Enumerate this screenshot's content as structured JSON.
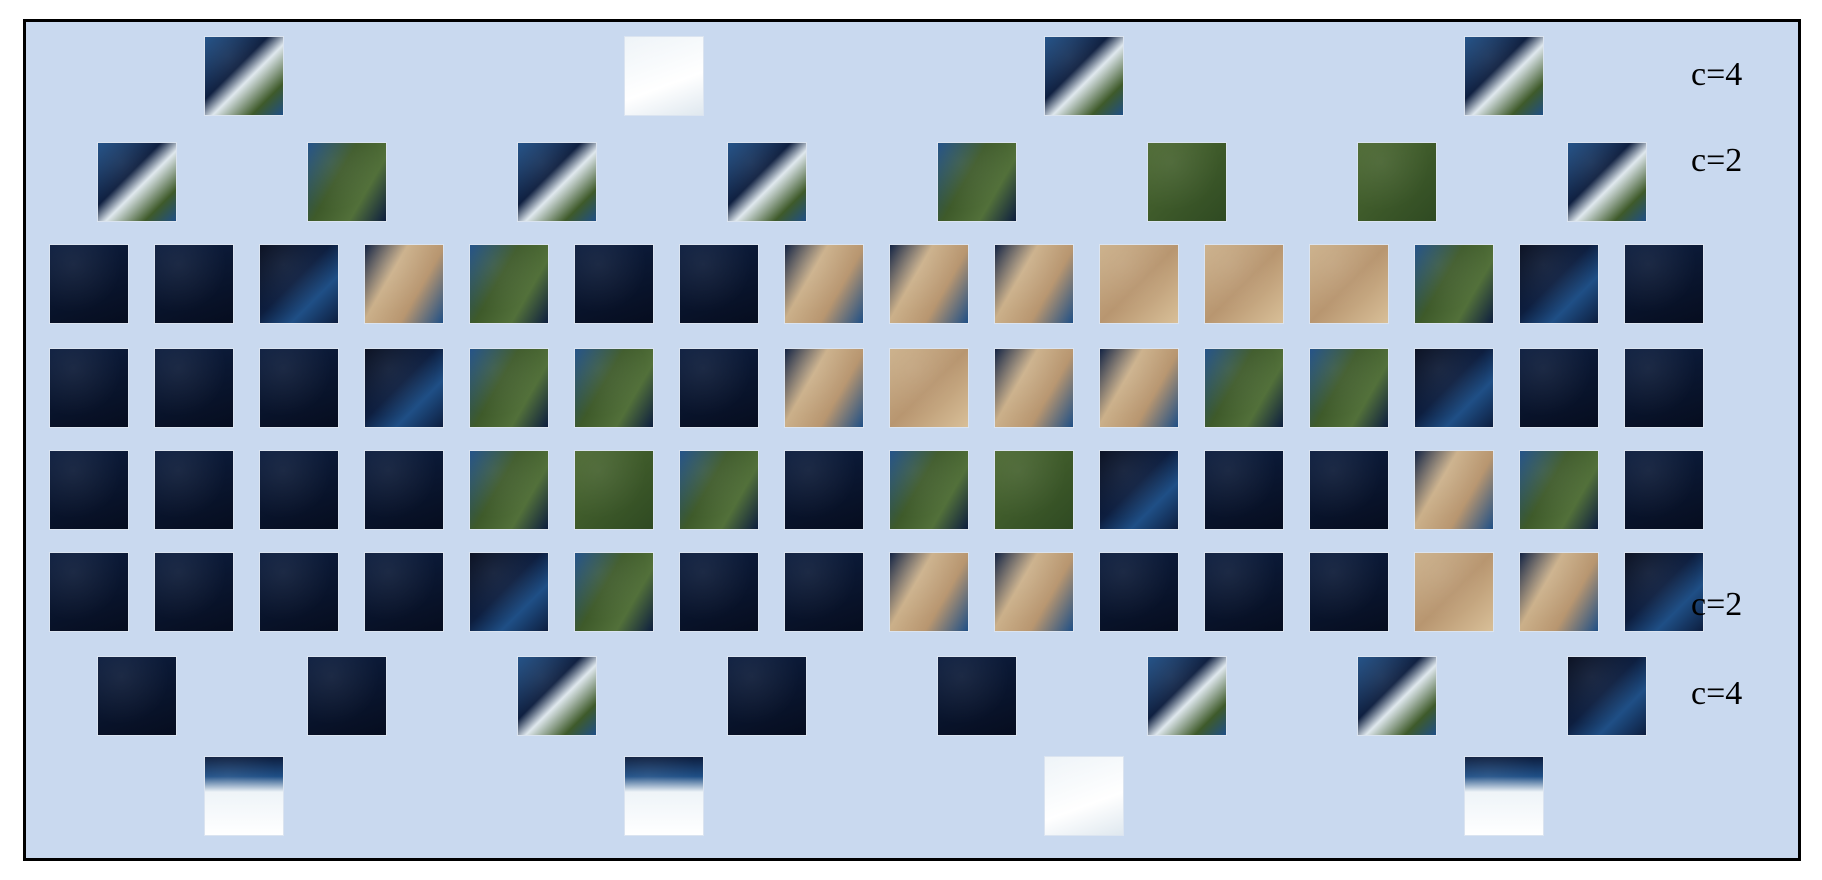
{
  "palette": {
    "frame_bg": "#c9d9ef",
    "ocean_deep": "#060d1f",
    "ocean_mid": "#0d1e3f",
    "shelf": "#1f4f86",
    "forest": "#3e5a2a",
    "desert": "#cbb08a",
    "ice": "#eef4f8"
  },
  "row_labels": {
    "top_c4": "c=4",
    "top_c2": "c=2",
    "bottom_c2": "c=2",
    "bottom_c4": "c=4"
  },
  "tile_rows": [
    {
      "id": "north-c4",
      "tiles": [
        "icy-coast",
        "ice",
        "icy-coast",
        "icy-coast"
      ]
    },
    {
      "id": "north-c2",
      "tiles": [
        "icy-coast",
        "forest-coast",
        "icy-coast",
        "icy-coast",
        "forest-coast",
        "forest",
        "forest",
        "icy-coast"
      ]
    },
    {
      "id": "band-1",
      "tiles": [
        "ocean",
        "ocean",
        "coast",
        "desert-coast",
        "forest-coast",
        "ocean",
        "ocean",
        "desert-coast",
        "desert-coast",
        "desert-coast",
        "desert",
        "desert",
        "desert",
        "forest-coast",
        "coast",
        "ocean"
      ]
    },
    {
      "id": "band-2",
      "tiles": [
        "ocean",
        "ocean",
        "ocean",
        "coast",
        "forest-coast",
        "forest-coast",
        "ocean",
        "desert-coast",
        "desert",
        "desert-coast",
        "desert-coast",
        "forest-coast",
        "forest-coast",
        "coast",
        "ocean",
        "ocean"
      ]
    },
    {
      "id": "band-3",
      "tiles": [
        "ocean",
        "ocean",
        "ocean",
        "ocean",
        "forest-coast",
        "forest",
        "forest-coast",
        "ocean",
        "forest-coast",
        "forest",
        "coast",
        "ocean",
        "ocean",
        "desert-coast",
        "forest-coast",
        "ocean"
      ]
    },
    {
      "id": "band-4",
      "tiles": [
        "ocean",
        "ocean",
        "ocean",
        "ocean",
        "coast",
        "forest-coast",
        "ocean",
        "ocean",
        "desert-coast",
        "desert-coast",
        "ocean",
        "ocean",
        "ocean",
        "desert",
        "desert-coast",
        "coast"
      ]
    },
    {
      "id": "south-c2",
      "tiles": [
        "ocean",
        "ocean",
        "icy-coast",
        "ocean",
        "ocean",
        "icy-coast",
        "icy-coast",
        "coast"
      ]
    },
    {
      "id": "south-c4",
      "tiles": [
        "ice-coast",
        "ice-coast",
        "ice",
        "ice-coast"
      ]
    }
  ]
}
